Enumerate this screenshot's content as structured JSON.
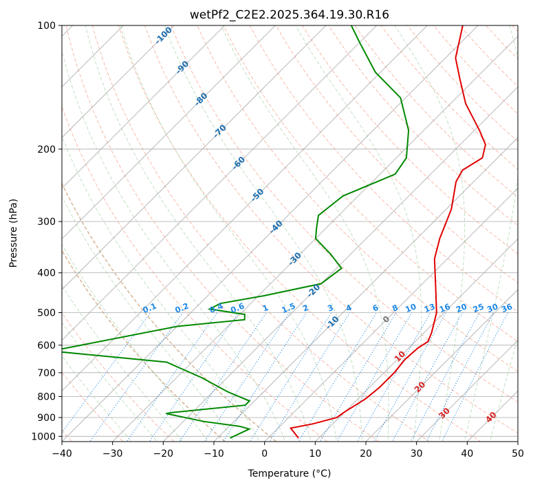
{
  "chart_data": {
    "type": "line",
    "title": "wetPf2_C2E2.2025.364.19.30.R16",
    "xlabel": "Temperature (°C)",
    "ylabel": "Pressure (hPa)",
    "xlim": [
      -40,
      50
    ],
    "ylim": [
      1030,
      100
    ],
    "y_scale": "log",
    "grid": true,
    "x_ticks": [
      "−40",
      "−30",
      "−20",
      "−10",
      "0",
      "10",
      "20",
      "30",
      "40",
      "50"
    ],
    "y_ticks": [
      "100",
      "200",
      "300",
      "400",
      "500",
      "600",
      "700",
      "800",
      "900",
      "1000"
    ],
    "isotherm_labels": [
      "-100",
      "-90",
      "-80",
      "-70",
      "-60",
      "-50",
      "-40",
      "-30",
      "-20",
      "-10",
      "0",
      "10",
      "20",
      "30",
      "40"
    ],
    "mixing_ratio_labels": [
      "0.1",
      "0.2",
      "0.4",
      "0.6",
      "1",
      "1.5",
      "2",
      "3",
      "4",
      "6",
      "8",
      "10",
      "13",
      "16",
      "20",
      "25",
      "30",
      "36"
    ],
    "series": [
      {
        "color": "#e00000",
        "points": [
          [
            6.0,
            1010
          ],
          [
            2.5,
            955
          ],
          [
            6.0,
            933
          ],
          [
            9.5,
            900
          ],
          [
            10.0,
            870
          ],
          [
            11.5,
            810
          ],
          [
            12.0,
            760
          ],
          [
            12.0,
            700
          ],
          [
            11.5,
            650
          ],
          [
            11.8,
            610
          ],
          [
            12.5,
            588
          ],
          [
            11.5,
            560
          ],
          [
            8.5,
            500
          ],
          [
            3.0,
            430
          ],
          [
            -2.5,
            370
          ],
          [
            -5.5,
            330
          ],
          [
            -9.0,
            280
          ],
          [
            -13.5,
            240
          ],
          [
            -14.5,
            225
          ],
          [
            -13.0,
            210
          ],
          [
            -15.0,
            195
          ],
          [
            -19.0,
            180
          ],
          [
            -27.0,
            155
          ],
          [
            -33.0,
            135
          ],
          [
            -38.0,
            120
          ],
          [
            -43.0,
            100
          ]
        ]
      },
      {
        "color": "#008800",
        "points": [
          [
            -7.5,
            1010
          ],
          [
            -5.5,
            960
          ],
          [
            -8.0,
            945
          ],
          [
            -16.0,
            920
          ],
          [
            -25.0,
            880
          ],
          [
            -24.0,
            875
          ],
          [
            -11.0,
            840
          ],
          [
            -11.0,
            820
          ],
          [
            -17.0,
            780
          ],
          [
            -25.0,
            720
          ],
          [
            -35.0,
            660
          ],
          [
            -60.0,
            620
          ],
          [
            -40.0,
            540
          ],
          [
            -28.0,
            520
          ],
          [
            -29.0,
            505
          ],
          [
            -37.0,
            490
          ],
          [
            -36.0,
            475
          ],
          [
            -29.0,
            455
          ],
          [
            -20.0,
            425
          ],
          [
            -19.0,
            390
          ],
          [
            -24.0,
            360
          ],
          [
            -30.0,
            330
          ],
          [
            -32.0,
            310
          ],
          [
            -34.0,
            290
          ],
          [
            -33.0,
            260
          ],
          [
            -27.0,
            230
          ],
          [
            -28.0,
            210
          ],
          [
            -33.0,
            180
          ],
          [
            -41.0,
            150
          ],
          [
            -51.0,
            130
          ],
          [
            -60.0,
            110
          ],
          [
            -65.0,
            100
          ]
        ]
      }
    ]
  }
}
